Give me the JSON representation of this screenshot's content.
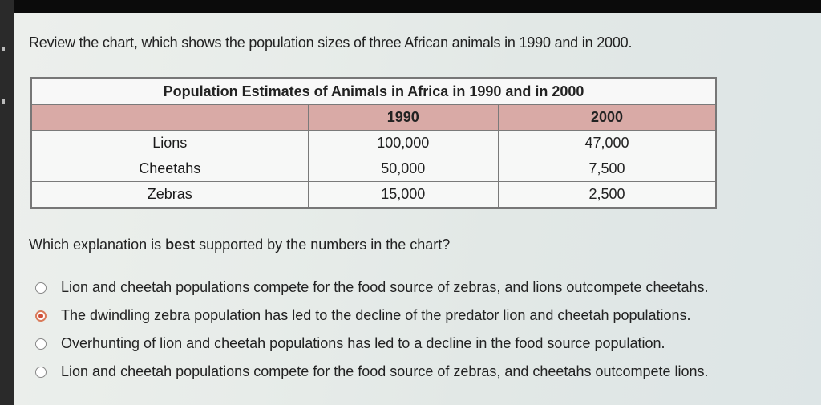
{
  "prompt": "Review the chart, which shows the population sizes of three African animals in 1990 and in 2000.",
  "table": {
    "caption": "Population Estimates of Animals in Africa in 1990 and in 2000",
    "headers": [
      "",
      "1990",
      "2000"
    ],
    "rows": [
      {
        "label": "Lions",
        "v1990": "100,000",
        "v2000": "47,000"
      },
      {
        "label": "Cheetahs",
        "v1990": "50,000",
        "v2000": "7,500"
      },
      {
        "label": "Zebras",
        "v1990": "15,000",
        "v2000": "2,500"
      }
    ]
  },
  "question": {
    "before": "Which explanation is ",
    "bold": "best",
    "after": " supported by the numbers in the chart?"
  },
  "options": [
    {
      "label": "Lion and cheetah populations compete for the food source of zebras, and lions outcompete cheetahs.",
      "selected": false
    },
    {
      "label": "The dwindling zebra population has led to the decline of the predator lion and cheetah populations.",
      "selected": true
    },
    {
      "label": "Overhunting of lion and cheetah populations has led to a decline in the food source population.",
      "selected": false
    },
    {
      "label": "Lion and cheetah populations compete for the food source of zebras, and cheetahs outcompete lions.",
      "selected": false
    }
  ],
  "colors": {
    "selected_radio": "#d0503a",
    "table_header": "#d9aaa6"
  }
}
